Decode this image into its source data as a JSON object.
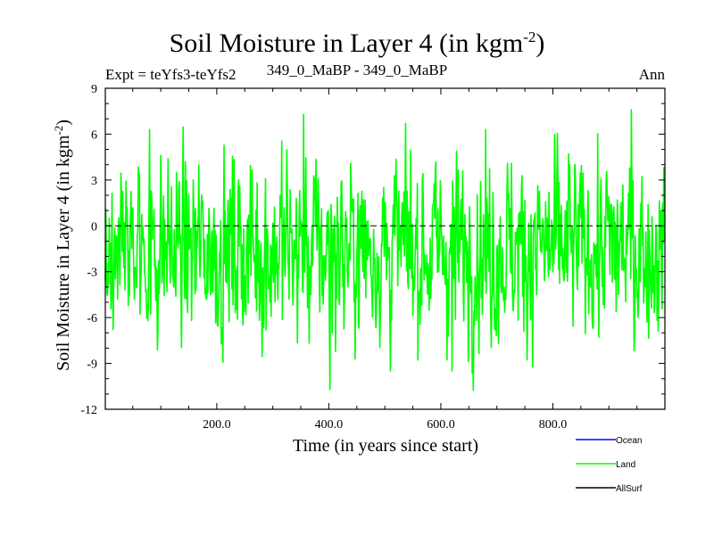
{
  "header": {
    "title_main": "Soil Moisture in Layer 4 (in kgm",
    "title_sup": "-2",
    "title_end": ")",
    "experiment": "Expt = teYfs3-teYfs2",
    "period": "349_0_MaBP - 349_0_MaBP",
    "season": "Ann"
  },
  "colors": {
    "ocean": "#0000ff",
    "land": "#00ff00",
    "allsurf": "#000000"
  },
  "chart_data": {
    "type": "line",
    "title": "Soil Moisture in Layer 4 (in kgm-2)",
    "xlabel": "Time (in years since start)",
    "ylabel_main": "Soil Moisture in Layer 4 (in kgm",
    "ylabel_sup": "-2",
    "ylabel_end": ")",
    "xlim": [
      1,
      1000
    ],
    "ylim": [
      -12,
      9
    ],
    "x_ticks": [
      200,
      400,
      600,
      800
    ],
    "x_tick_labels": [
      "200.0",
      "400.0",
      "600.0",
      "800.0"
    ],
    "y_ticks": [
      9,
      6,
      3,
      0,
      -3,
      -6,
      -9,
      -12
    ],
    "y_tick_labels": [
      "9",
      "6",
      "3",
      "0",
      "-3",
      "-6",
      "-9",
      "-12"
    ],
    "zero_line": 0,
    "series": [
      {
        "name": "Ocean",
        "color": "#0000ff",
        "values": []
      },
      {
        "name": "Land",
        "color": "#00ff00",
        "n_years": 1000,
        "mean": -1.5,
        "std": 3.0,
        "extremes": [
          {
            "x": 355,
            "y": 7.3
          },
          {
            "x": 402,
            "y": -10.7
          },
          {
            "x": 940,
            "y": 7.6
          },
          {
            "x": 620,
            "y": -9.5
          },
          {
            "x": 80,
            "y": 6.3
          },
          {
            "x": 680,
            "y": 6.3
          }
        ]
      },
      {
        "name": "AllSurf",
        "color": "#000000",
        "values": []
      }
    ],
    "legend": {
      "position": "bottom-right",
      "entries": [
        "Ocean",
        "Land",
        "AllSurf"
      ]
    }
  }
}
